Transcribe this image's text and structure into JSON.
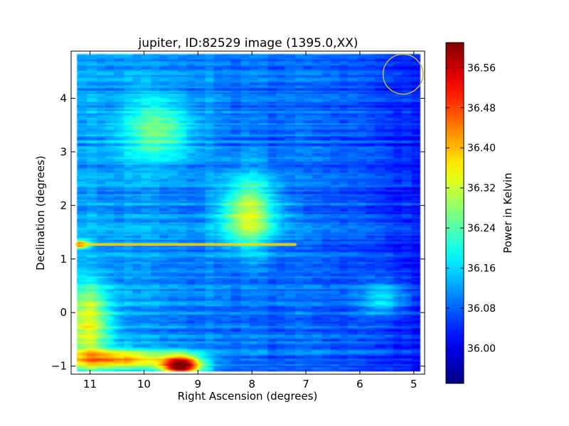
{
  "chart_data": {
    "type": "heatmap",
    "title": "jupiter, ID:82529 image (1395.0,XX)",
    "xlabel": "Right Ascension (degrees)",
    "ylabel": "Declination (degrees)",
    "xlim": [
      11.35,
      4.8
    ],
    "ylim": [
      -1.15,
      4.88
    ],
    "x_ticks": [
      11,
      10,
      9,
      8,
      7,
      6,
      5
    ],
    "y_ticks": [
      -1,
      0,
      1,
      2,
      3,
      4
    ],
    "x_tick_labels": [
      "11",
      "10",
      "9",
      "8",
      "7",
      "6",
      "5"
    ],
    "y_tick_labels": [
      "−1",
      "0",
      "1",
      "2",
      "3",
      "4"
    ],
    "x_extent": [
      11.25,
      4.88
    ],
    "y_extent": [
      -1.1,
      4.83
    ],
    "colorbar": {
      "label": "Power in Kelvin",
      "range": [
        35.93,
        36.61
      ],
      "ticks": [
        36.0,
        36.08,
        36.16,
        36.24,
        36.32,
        36.4,
        36.48,
        36.56
      ],
      "tick_labels": [
        "36.00",
        "36.08",
        "36.16",
        "36.24",
        "36.32",
        "36.40",
        "36.48",
        "36.56"
      ],
      "colormap": "jet"
    },
    "background_level": 36.09,
    "features": [
      {
        "ra": 8.05,
        "dec": 1.85,
        "peak": 36.33,
        "sigma_ra": 0.35,
        "sigma_dec": 0.45
      },
      {
        "ra": 9.75,
        "dec": 3.4,
        "peak": 36.24,
        "sigma_ra": 0.45,
        "sigma_dec": 0.4
      },
      {
        "ra": 5.55,
        "dec": 0.25,
        "peak": 36.2,
        "sigma_ra": 0.3,
        "sigma_dec": 0.25
      },
      {
        "ra": 9.3,
        "dec": -1.0,
        "peak": 36.6,
        "sigma_ra": 0.25,
        "sigma_dec": 0.13
      },
      {
        "ra": 10.5,
        "dec": -0.88,
        "peak": 36.4,
        "sigma_ra": 0.8,
        "sigma_dec": 0.12
      },
      {
        "ra": 11.2,
        "dec": 1.27,
        "peak": 36.52,
        "sigma_ra": 0.12,
        "sigma_dec": 0.05
      },
      {
        "ra": 11.05,
        "dec": -0.2,
        "peak": 36.32,
        "sigma_ra": 0.3,
        "sigma_dec": 0.5
      }
    ],
    "streak": {
      "dec": 1.27,
      "ra_from": 11.25,
      "ra_to": 7.2,
      "level": 36.38
    },
    "annotation_circle": {
      "ra": 5.2,
      "dec": 4.45,
      "radius_deg": 0.37,
      "color": "#c9b036"
    }
  }
}
